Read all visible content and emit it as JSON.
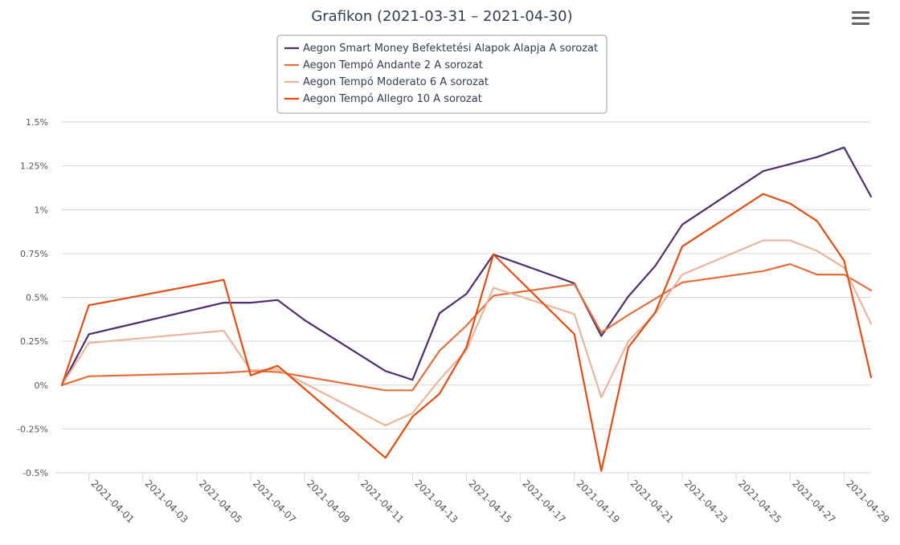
{
  "chart_data": {
    "type": "line",
    "title": "Grafikon (2021-03-31 – 2021-04-30)",
    "xlabel": "",
    "ylabel": "",
    "ylim": [
      -0.5,
      1.5
    ],
    "xlim": [
      "2021-03-31",
      "2021-04-30"
    ],
    "yticks": [
      {
        "value": 1.5,
        "label": "1.5%"
      },
      {
        "value": 1.25,
        "label": "1.25%"
      },
      {
        "value": 1.0,
        "label": "1%"
      },
      {
        "value": 0.75,
        "label": "0.75%"
      },
      {
        "value": 0.5,
        "label": "0.5%"
      },
      {
        "value": 0.25,
        "label": "0.25%"
      },
      {
        "value": 0.0,
        "label": "0%"
      },
      {
        "value": -0.25,
        "label": "-0.25%"
      },
      {
        "value": -0.5,
        "label": "-0.5%"
      }
    ],
    "xticks": [
      "2021-04-01",
      "2021-04-03",
      "2021-04-05",
      "2021-04-07",
      "2021-04-09",
      "2021-04-11",
      "2021-04-13",
      "2021-04-15",
      "2021-04-17",
      "2021-04-19",
      "2021-04-21",
      "2021-04-23",
      "2021-04-25",
      "2021-04-27",
      "2021-04-29"
    ],
    "grid": true,
    "legend_position": "top-center",
    "series": [
      {
        "name": "Aegon Smart Money Befektetési Alapok Alapja A sorozat",
        "color": "#4f2f6b",
        "points": [
          [
            "2021-03-31",
            0.0
          ],
          [
            "2021-04-01",
            0.29
          ],
          [
            "2021-04-06",
            0.47
          ],
          [
            "2021-04-07",
            0.47
          ],
          [
            "2021-04-08",
            0.485
          ],
          [
            "2021-04-09",
            0.37
          ],
          [
            "2021-04-12",
            0.08
          ],
          [
            "2021-04-13",
            0.03
          ],
          [
            "2021-04-14",
            0.41
          ],
          [
            "2021-04-15",
            0.52
          ],
          [
            "2021-04-16",
            0.745
          ],
          [
            "2021-04-19",
            0.58
          ],
          [
            "2021-04-20",
            0.28
          ],
          [
            "2021-04-21",
            0.505
          ],
          [
            "2021-04-22",
            0.68
          ],
          [
            "2021-04-23",
            0.915
          ],
          [
            "2021-04-26",
            1.22
          ],
          [
            "2021-04-27",
            1.26
          ],
          [
            "2021-04-28",
            1.3
          ],
          [
            "2021-04-29",
            1.355
          ],
          [
            "2021-04-30",
            1.075
          ]
        ]
      },
      {
        "name": "Aegon Tempó Andante 2 A sorozat",
        "color": "#e0703f",
        "points": [
          [
            "2021-03-31",
            0.0
          ],
          [
            "2021-04-01",
            0.05
          ],
          [
            "2021-04-06",
            0.07
          ],
          [
            "2021-04-07",
            0.08
          ],
          [
            "2021-04-08",
            0.075
          ],
          [
            "2021-04-12",
            -0.03
          ],
          [
            "2021-04-13",
            -0.03
          ],
          [
            "2021-04-14",
            0.195
          ],
          [
            "2021-04-15",
            0.34
          ],
          [
            "2021-04-16",
            0.51
          ],
          [
            "2021-04-19",
            0.575
          ],
          [
            "2021-04-20",
            0.3
          ],
          [
            "2021-04-21",
            0.4
          ],
          [
            "2021-04-23",
            0.585
          ],
          [
            "2021-04-26",
            0.65
          ],
          [
            "2021-04-27",
            0.69
          ],
          [
            "2021-04-28",
            0.63
          ],
          [
            "2021-04-29",
            0.63
          ],
          [
            "2021-04-30",
            0.54
          ]
        ]
      },
      {
        "name": "Aegon Tempó Moderato 6 A sorozat",
        "color": "#e8b59e",
        "points": [
          [
            "2021-03-31",
            0.0
          ],
          [
            "2021-04-01",
            0.24
          ],
          [
            "2021-04-06",
            0.31
          ],
          [
            "2021-04-07",
            0.085
          ],
          [
            "2021-04-08",
            0.09
          ],
          [
            "2021-04-12",
            -0.23
          ],
          [
            "2021-04-13",
            -0.16
          ],
          [
            "2021-04-14",
            0.03
          ],
          [
            "2021-04-15",
            0.2
          ],
          [
            "2021-04-16",
            0.555
          ],
          [
            "2021-04-19",
            0.405
          ],
          [
            "2021-04-20",
            -0.07
          ],
          [
            "2021-04-21",
            0.25
          ],
          [
            "2021-04-22",
            0.41
          ],
          [
            "2021-04-23",
            0.63
          ],
          [
            "2021-04-26",
            0.825
          ],
          [
            "2021-04-27",
            0.825
          ],
          [
            "2021-04-28",
            0.765
          ],
          [
            "2021-04-29",
            0.67
          ],
          [
            "2021-04-30",
            0.35
          ]
        ]
      },
      {
        "name": "Aegon Tempó Allegro 10 A sorozat",
        "color": "#df4e12",
        "points": [
          [
            "2021-03-31",
            0.0
          ],
          [
            "2021-04-01",
            0.455
          ],
          [
            "2021-04-06",
            0.6
          ],
          [
            "2021-04-07",
            0.055
          ],
          [
            "2021-04-08",
            0.11
          ],
          [
            "2021-04-12",
            -0.415
          ],
          [
            "2021-04-13",
            -0.18
          ],
          [
            "2021-04-14",
            -0.05
          ],
          [
            "2021-04-15",
            0.215
          ],
          [
            "2021-04-16",
            0.745
          ],
          [
            "2021-04-19",
            0.29
          ],
          [
            "2021-04-20",
            -0.49
          ],
          [
            "2021-04-21",
            0.215
          ],
          [
            "2021-04-22",
            0.415
          ],
          [
            "2021-04-23",
            0.79
          ],
          [
            "2021-04-26",
            1.09
          ],
          [
            "2021-04-27",
            1.035
          ],
          [
            "2021-04-28",
            0.935
          ],
          [
            "2021-04-29",
            0.71
          ],
          [
            "2021-04-30",
            0.045
          ]
        ]
      }
    ]
  },
  "menu": {
    "icon": "hamburger-menu-icon"
  }
}
